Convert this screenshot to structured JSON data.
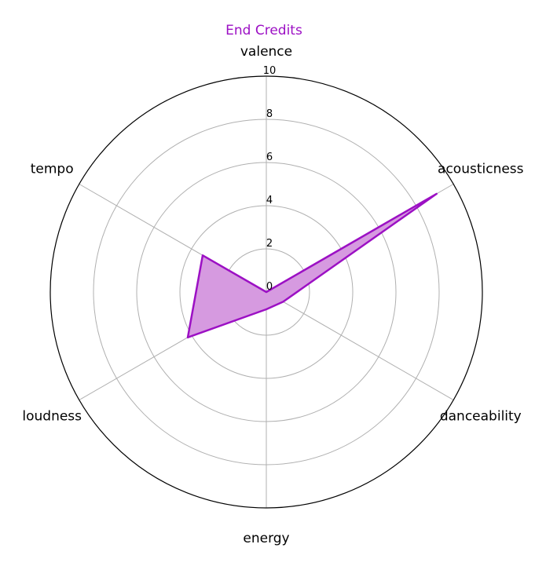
{
  "chart_data": {
    "type": "radar",
    "title": "End Credits",
    "axes": [
      "valence",
      "acousticness",
      "danceability",
      "energy",
      "loudness",
      "tempo"
    ],
    "series": [
      {
        "values": [
          0.0,
          9.1,
          0.9,
          0.8,
          4.2,
          3.4
        ]
      }
    ],
    "rlim": [
      0,
      10
    ],
    "rticks": [
      "0",
      "2",
      "4",
      "6",
      "8",
      "10"
    ],
    "grid": true,
    "colors": {
      "series": "#9c10c4",
      "fill": "#d69ae0",
      "grid": "#b0b0b0",
      "title": "#9c10c4"
    }
  }
}
